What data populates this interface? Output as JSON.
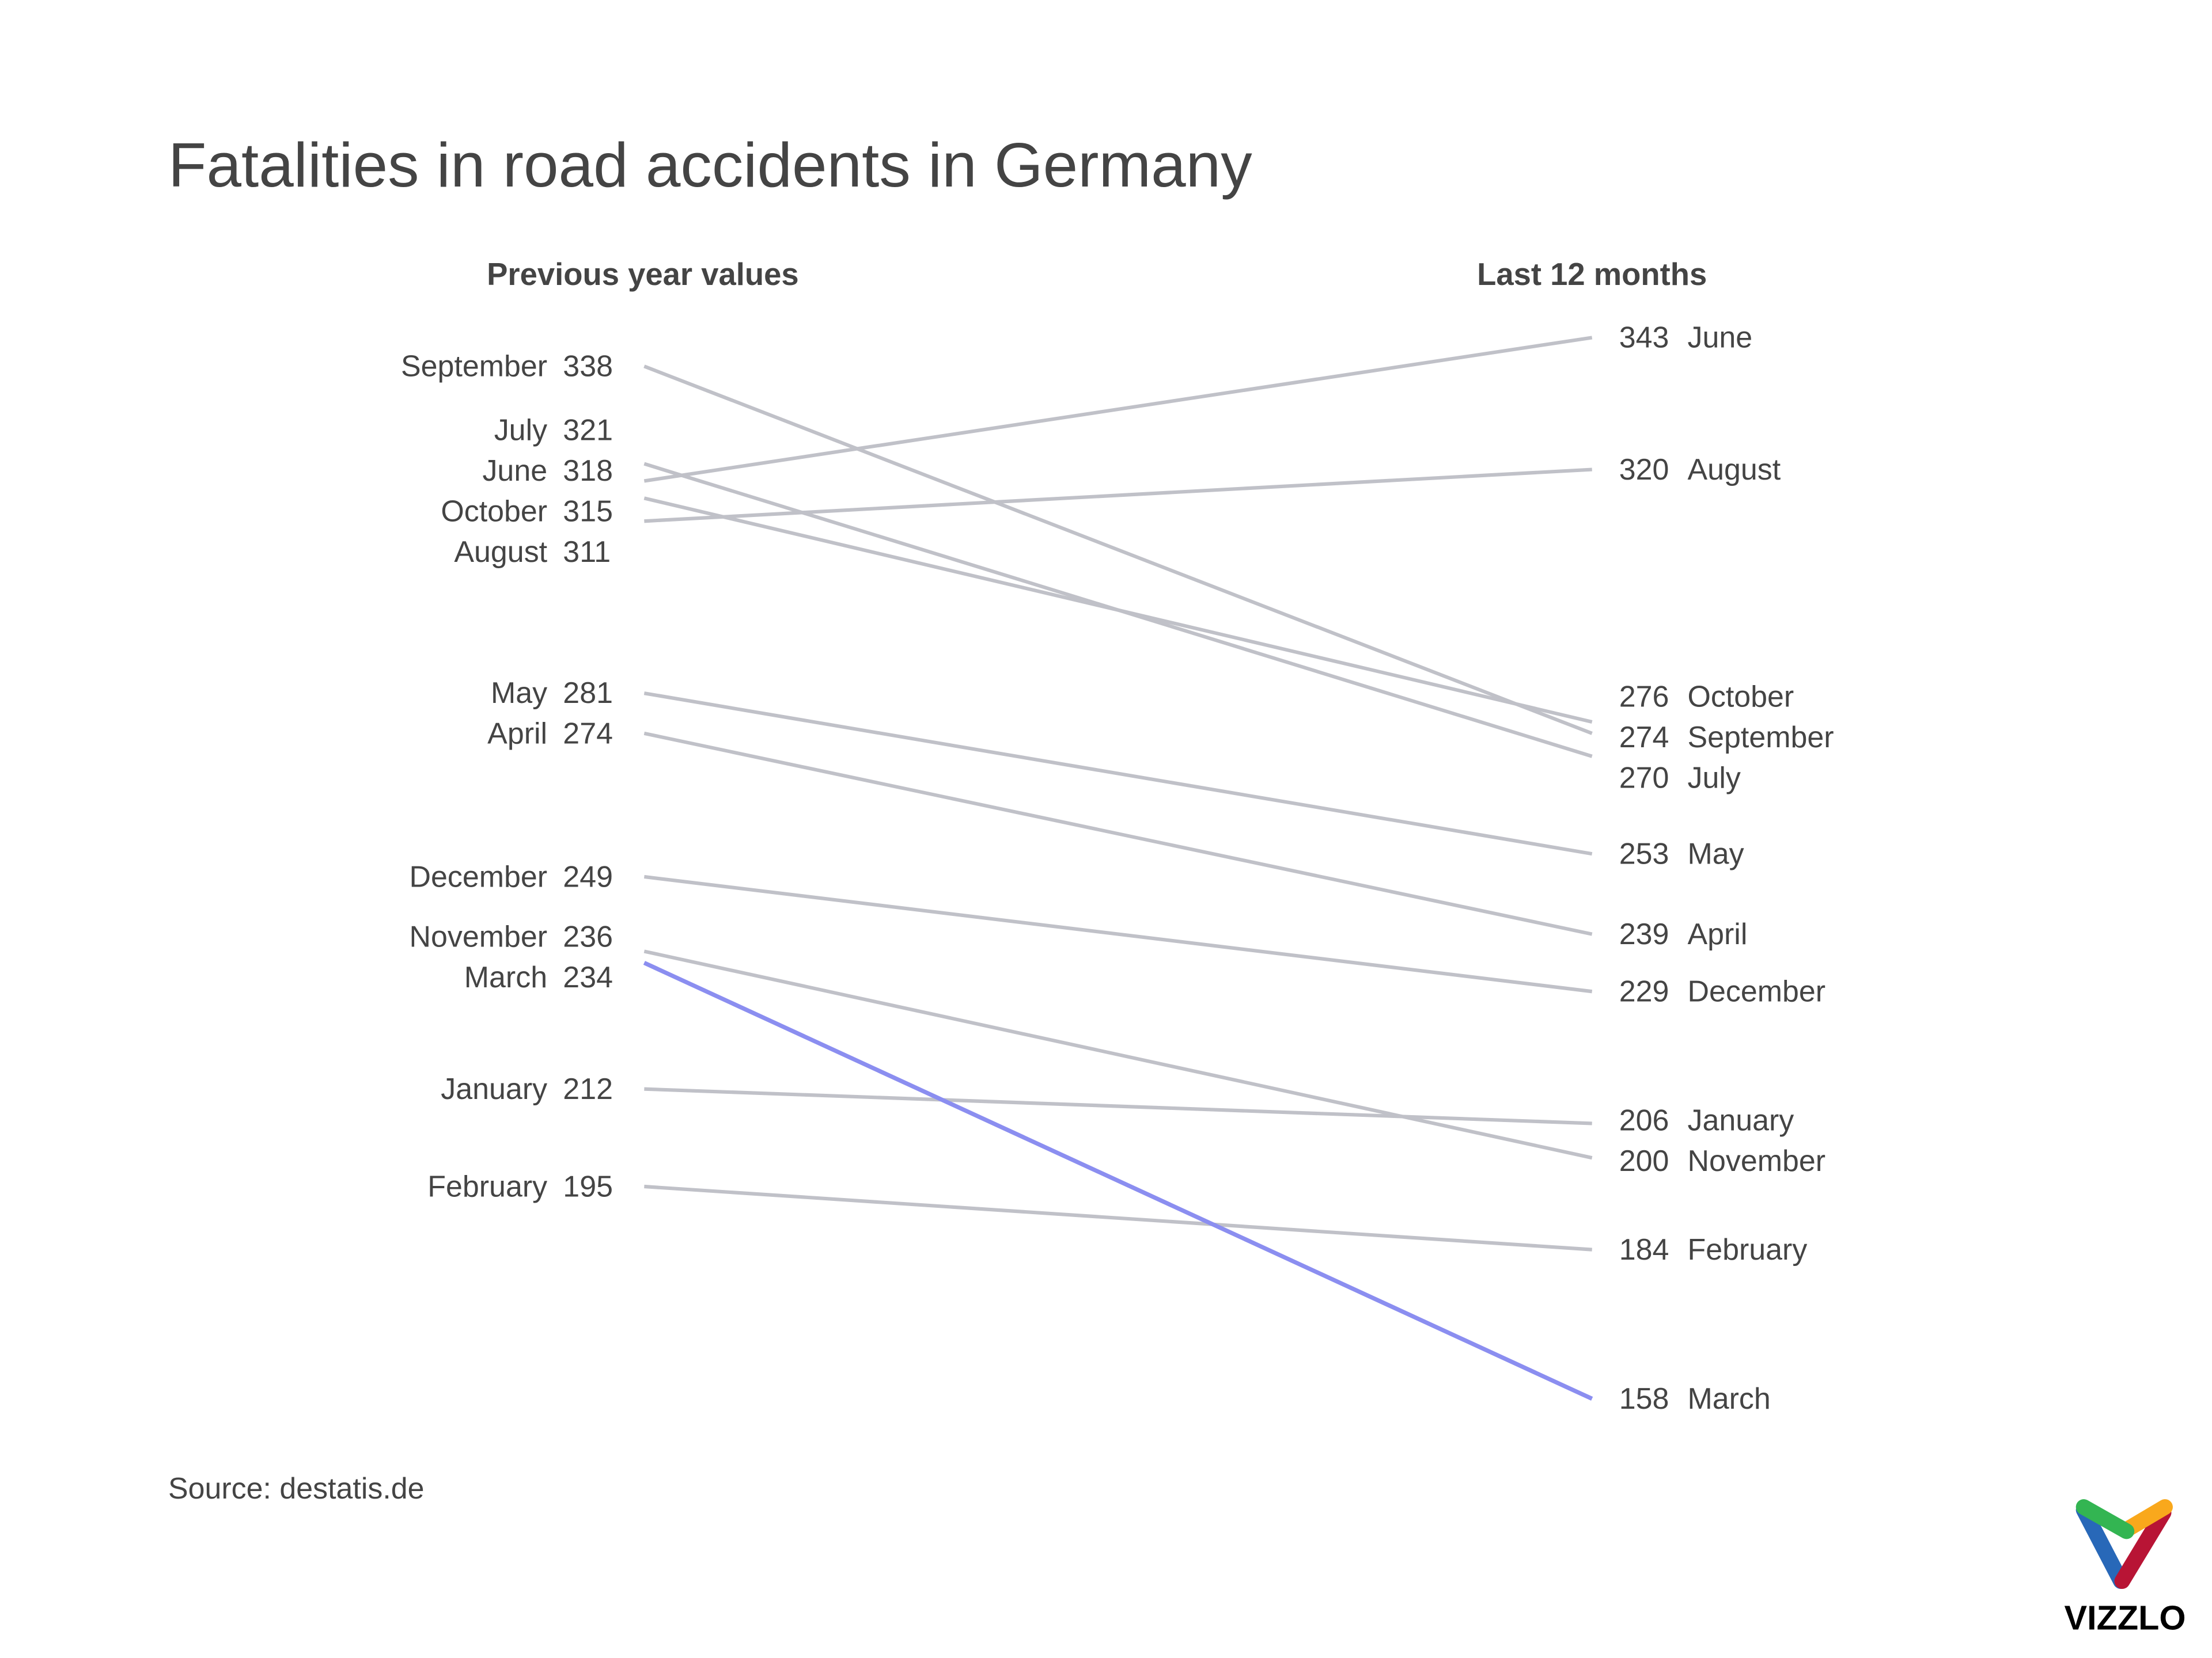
{
  "chart_data": {
    "type": "slope",
    "title": "Fatalities in road accidents in Germany",
    "left_header": "Previous year values",
    "right_header": "Last 12 months",
    "source": "Source: destatis.de",
    "highlight": "March",
    "colors": {
      "default": "#c0c1c8",
      "highlight": "#8b8ef0",
      "text": "#444444"
    },
    "series": [
      {
        "name": "January",
        "previous": 212,
        "last12": 206
      },
      {
        "name": "February",
        "previous": 195,
        "last12": 184
      },
      {
        "name": "March",
        "previous": 234,
        "last12": 158
      },
      {
        "name": "April",
        "previous": 274,
        "last12": 239
      },
      {
        "name": "May",
        "previous": 281,
        "last12": 253
      },
      {
        "name": "June",
        "previous": 318,
        "last12": 343
      },
      {
        "name": "July",
        "previous": 321,
        "last12": 270
      },
      {
        "name": "August",
        "previous": 311,
        "last12": 320
      },
      {
        "name": "September",
        "previous": 338,
        "last12": 274
      },
      {
        "name": "October",
        "previous": 315,
        "last12": 276
      },
      {
        "name": "November",
        "previous": 236,
        "last12": 200
      },
      {
        "name": "December",
        "previous": 249,
        "last12": 229
      }
    ]
  },
  "logo": {
    "text": "VIZZLO"
  }
}
